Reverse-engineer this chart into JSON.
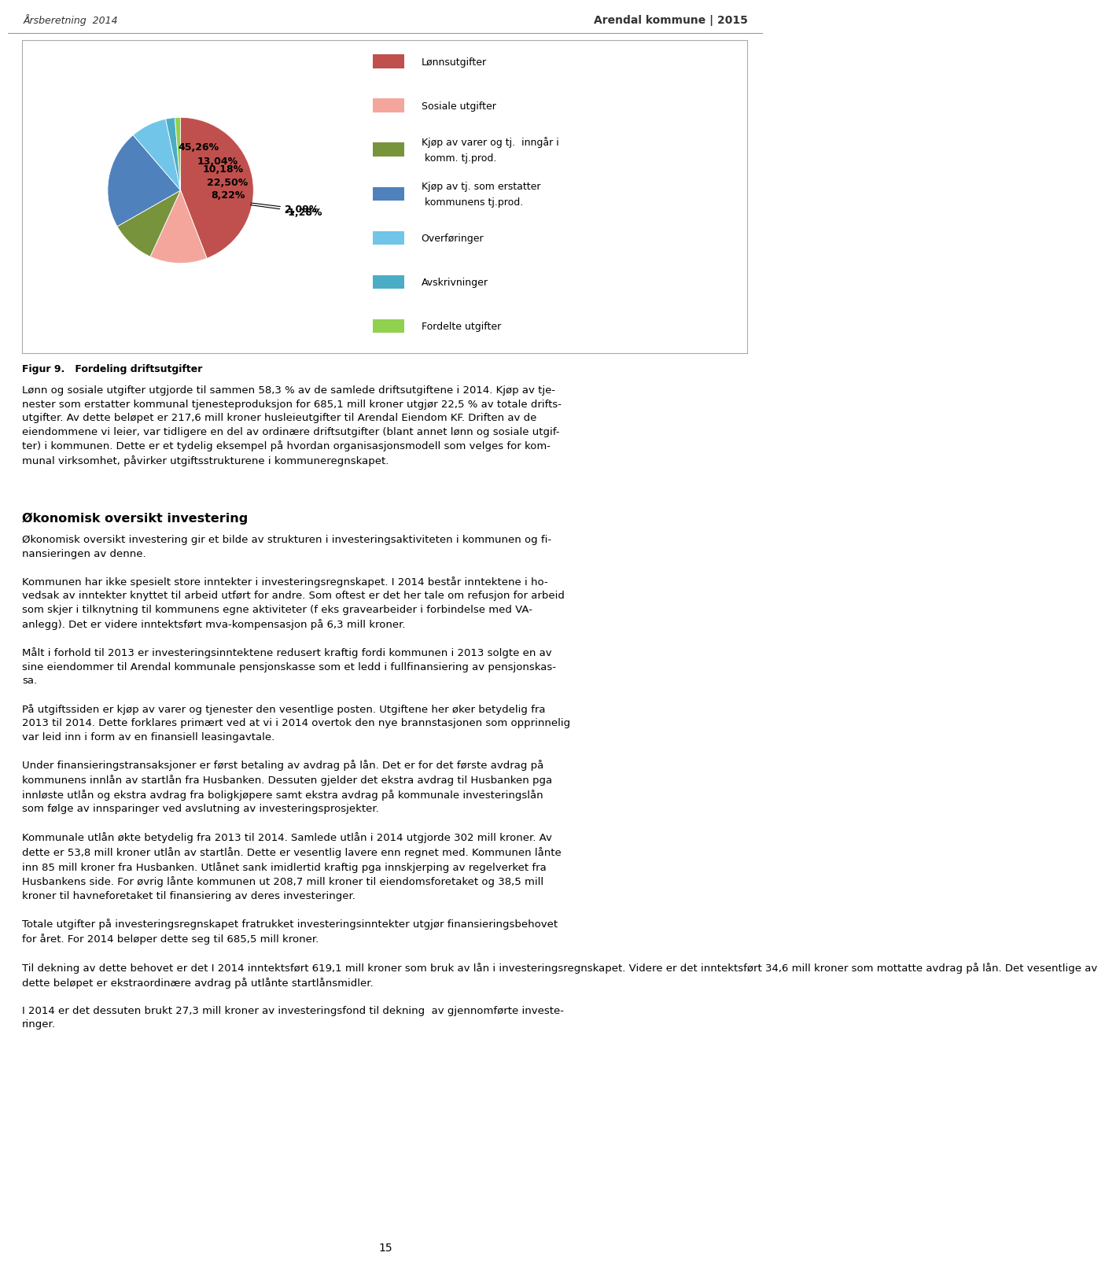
{
  "abs_slices": [
    45.26,
    13.04,
    10.18,
    22.5,
    8.22,
    2.09,
    1.28
  ],
  "labels": [
    "45,26%",
    "13,04%",
    "10,18%",
    "22,50%",
    "8,22%",
    "2,09%",
    "-1,28%"
  ],
  "colors": [
    "#C0504D",
    "#F4A69D",
    "#77933C",
    "#4F81BD",
    "#71C5E8",
    "#4BACC6",
    "#92D050"
  ],
  "legend_labels": [
    "Lønnsutgifter",
    "Sosiale utgifter",
    "Kjøp av varer og tj.  inngår i\n komm. tj.prod.",
    "Kjøp av tj. som erstatter\n kommunens tj.prod.",
    "Overføringer",
    "Avskrivninger",
    "Fordelte utgifter"
  ],
  "legend_colors": [
    "#C0504D",
    "#F4A69D",
    "#77933C",
    "#4F81BD",
    "#71C5E8",
    "#4BACC6",
    "#92D050"
  ],
  "header_left": "Årsberetning  2014",
  "header_right": "Arendal kommune | 2015",
  "figure_title": "Figur 9.   Fordeling driftsutgifter",
  "body_text": "Lønn og sosiale utgifter utgjorde til sammen 58,3 % av de samlede driftsutgiftene i 2014. Kjøp av tje-\nnester som erstatter kommunal tjenesteproduksjon for 685,1 mill kroner utgjør 22,5 % av totale drifts-\nutgifter. Av dette beløpet er 217,6 mill kroner husleieutgifter til Arendal Eiendom KF. Driften av de\neiendommene vi leier, var tidligere en del av ordinære driftsutgifter (blant annet lønn og sosiale utgif-\nter) i kommunen. Dette er et tydelig eksempel på hvordan organisasjonsmodell som velges for kom-\nmunal virksomhet, påvirker utgiftsstrukturene i kommuneregnskapet.",
  "section_title": "Økonomisk oversikt investering",
  "section_text": "Økonomisk oversikt investering gir et bilde av strukturen i investeringsaktiviteten i kommunen og fi-\nnansieringen av denne.\n\nKommunen har ikke spesielt store inntekter i investeringsregnskapet. I 2014 består inntektene i ho-\nvedsak av inntekter knyttet til arbeid utført for andre. Som oftest er det her tale om refusjon for arbeid\nsom skjer i tilknytning til kommunens egne aktiviteter (f eks gravearbeider i forbindelse med VA-\nanlegg). Det er videre inntektsført mva-kompensasjon på 6,3 mill kroner.\n\nMålt i forhold til 2013 er investeringsinntektene redusert kraftig fordi kommunen i 2013 solgte en av\nsine eiendommer til Arendal kommunale pensjonskasse som et ledd i fullfinansiering av pensjonskas-\nsa.\n\nPå utgiftssiden er kjøp av varer og tjenester den vesentlige posten. Utgiftene her øker betydelig fra\n2013 til 2014. Dette forklares primært ved at vi i 2014 overtok den nye brannstasjonen som opprinnelig\nvar leid inn i form av en finansiell leasingavtale.\n\nUnder finansieringstransaksjoner er først betaling av avdrag på lån. Det er for det første avdrag på\nkommunens innlån av startlån fra Husbanken. Dessuten gjelder det ekstra avdrag til Husbanken pga\ninnløste utlån og ekstra avdrag fra boligkjøpere samt ekstra avdrag på kommunale investeringslån\nsom følge av innsparinger ved avslutning av investeringsprosjekter.\n\nKommunale utlån økte betydelig fra 2013 til 2014. Samlede utlån i 2014 utgjorde 302 mill kroner. Av\ndette er 53,8 mill kroner utlån av startlån. Dette er vesentlig lavere enn regnet med. Kommunen lånte\ninn 85 mill kroner fra Husbanken. Utlånet sank imidlertid kraftig pga innskjerping av regelverket fra\nHusbankens side. For øvrig lånte kommunen ut 208,7 mill kroner til eiendomsforetaket og 38,5 mill\nkroner til havneforetaket til finansiering av deres investeringer.\n\nTotale utgifter på investeringsregnskapet fratrukket investeringsinntekter utgjør finansieringsbehovet\nfor året. For 2014 beløper dette seg til 685,5 mill kroner.\n\nTil dekning av dette behovet er det I 2014 inntektsført 619,1 mill kroner som bruk av lån i investeringsregnskapet. Videre er det inntektsført 34,6 mill kroner som mottatte avdrag på lån. Det vesentlige av\ndette beløpet er ekstraordinære avdrag på utlånte startlånsmidler.\n\nI 2014 er det dessuten brukt 27,3 mill kroner av investeringsfond til dekning  av gjennomførte investe-\nringer.",
  "page_number": "15"
}
